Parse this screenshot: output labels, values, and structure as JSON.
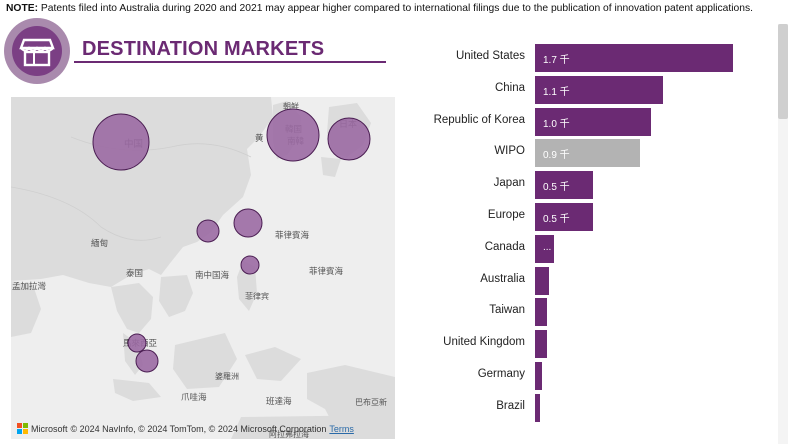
{
  "note": {
    "prefix": "NOTE:",
    "text": " Patents filed into Australia during 2020 and 2021 may appear higher compared to international filings due to the publication of innovation patent applications."
  },
  "section": {
    "title": "DESTINATION MARKETS",
    "icon": "storefront-icon"
  },
  "map": {
    "labels": {
      "china": "中国",
      "korea_cn": "韓国",
      "korea_han": "南韓",
      "japan": "日本",
      "yellow_sea": "黄",
      "mongolia_top": "朝鲜",
      "myanmar": "緬甸",
      "thailand": "泰国",
      "south_china_sea": "南中国海",
      "philippines": "菲律宾",
      "philippine_sea1": "菲律賓海",
      "philippine_sea2": "菲律賓海",
      "bay_bengal": "孟加拉灣",
      "malaysia": "馬來西亞",
      "borneo": "婆羅洲",
      "java_sea": "爪哇海",
      "banda_sea": "班達海",
      "new_guinea": "巴布亞新",
      "arafura": "阿拉弗拉海"
    },
    "attribution": "© 2024 NavInfo, © 2024 TomTom, © 2024 Microsoft Corporation",
    "microsoft": "Microsoft",
    "terms": "Terms",
    "bubbles": [
      {
        "name": "China",
        "value_k": 1.1
      },
      {
        "name": "Republic of Korea",
        "value_k": 1.0
      },
      {
        "name": "Japan",
        "value_k": 0.5
      },
      {
        "name": "Hong Kong",
        "value_k": 0.1
      },
      {
        "name": "Taiwan",
        "value_k": 0.2
      },
      {
        "name": "Philippines",
        "value_k": 0.05
      },
      {
        "name": "Malaysia",
        "value_k": 0.05
      },
      {
        "name": "Singapore",
        "value_k": 0.08
      }
    ]
  },
  "chart_data": {
    "type": "bar",
    "orientation": "horizontal",
    "categories": [
      "United States",
      "China",
      "Republic of Korea",
      "WIPO",
      "Japan",
      "Europe",
      "Canada",
      "Australia",
      "Taiwan",
      "United Kingdom",
      "Germany",
      "Brazil"
    ],
    "values": [
      1.7,
      1.1,
      1.0,
      0.9,
      0.5,
      0.5,
      0.16,
      0.12,
      0.1,
      0.1,
      0.06,
      0.04
    ],
    "value_labels": [
      "1.7 千",
      "1.1 千",
      "1.0 千",
      "0.9 千",
      "0.5 千",
      "0.5 千",
      "...",
      "",
      "",
      "",
      "",
      ""
    ],
    "colors": [
      "#6b2a73",
      "#6b2a73",
      "#6b2a73",
      "#b3b3b3",
      "#6b2a73",
      "#6b2a73",
      "#6b2a73",
      "#6b2a73",
      "#6b2a73",
      "#6b2a73",
      "#6b2a73",
      "#6b2a73"
    ],
    "xlim": [
      0,
      1.7
    ]
  },
  "colors": {
    "accent": "#6b2a73",
    "muted_bar": "#b3b3b3",
    "bubble_fill": "#9b6aa3",
    "map_land": "#dcdcdc",
    "map_water": "#eeeeee"
  }
}
